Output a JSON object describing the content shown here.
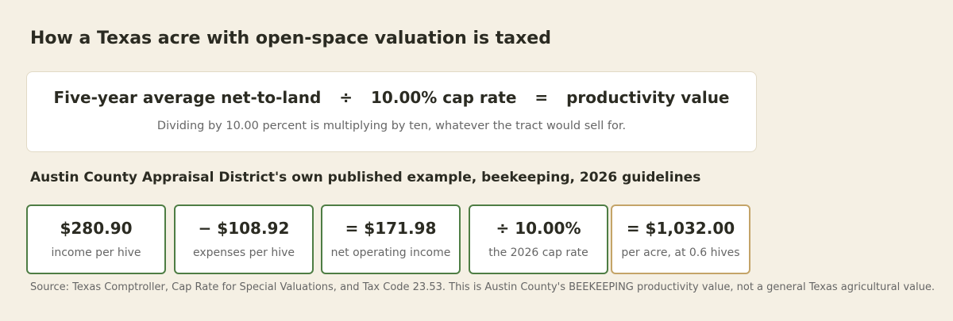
{
  "header": {
    "title": "How a Texas acre with open-space valuation is taxed"
  },
  "formula": {
    "terms": [
      "Five-year average net-to-land",
      "÷",
      "10.00% cap rate",
      "=",
      "productivity value"
    ],
    "note": "Dividing by 10.00 percent is multiplying by ten, whatever the tract would sell for."
  },
  "example": {
    "title": "Austin County Appraisal District's own published example, beekeeping, 2026 guidelines",
    "cards": [
      {
        "value": "$280.90",
        "label": "income per hive"
      },
      {
        "value": "− $108.92",
        "label": "expenses per hive"
      },
      {
        "value": "= $171.98",
        "label": "net operating income"
      },
      {
        "value": "÷ 10.00%",
        "label": "the 2026 cap rate"
      },
      {
        "value": "= $1,032.00",
        "label": "per acre, at 0.6 hives"
      }
    ]
  },
  "footer": {
    "source": "Source: Texas Comptroller, Cap Rate for Special Valuations, and Tax Code 23.53. This is Austin County's BEEKEEPING productivity value, not a general Texas agricultural value."
  }
}
